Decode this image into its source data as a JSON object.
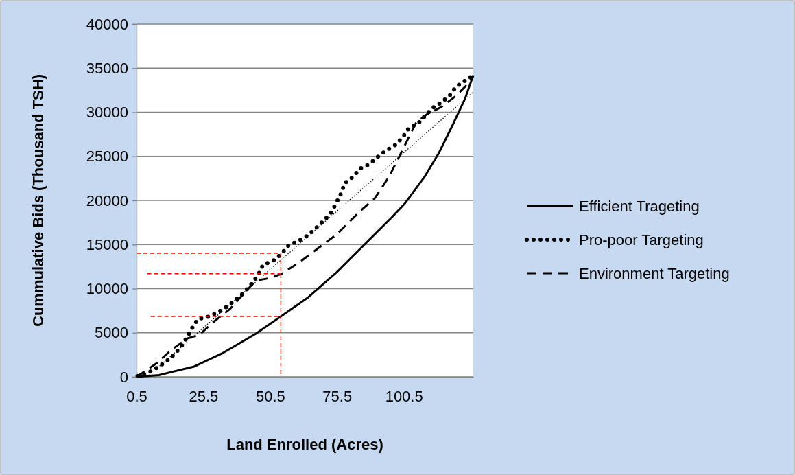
{
  "chart_data": {
    "type": "line",
    "xlabel": "Land Enrolled (Acres)",
    "ylabel": "Cummulative Bids (Thousand TSH)",
    "xlim": [
      0.5,
      126.5
    ],
    "xticks": [
      0.5,
      25.5,
      50.5,
      75.5,
      100.5
    ],
    "ylim": [
      0,
      40000
    ],
    "yticks": [
      0,
      5000,
      10000,
      15000,
      20000,
      25000,
      30000,
      35000,
      40000
    ],
    "grid": "y",
    "legend": "right",
    "marker": "none",
    "series": [
      {
        "name": "Efficient Trageting",
        "color": "#000000",
        "line_style": "solid",
        "x": [
          0.5,
          8.9,
          22.1,
          32.9,
          45.2,
          54.5,
          64.8,
          75.3,
          86.1,
          95.9,
          101,
          108.2,
          113.6,
          118.8,
          123.4,
          126.5
        ],
        "values": [
          0,
          200,
          1170,
          2720,
          4900,
          6850,
          9030,
          11830,
          15100,
          18050,
          19690,
          22650,
          25370,
          28560,
          31520,
          34200
        ]
      },
      {
        "name": "Pro-poor Targeting",
        "color": "#000000",
        "line_style": "dotted",
        "x": [
          0.9,
          4.5,
          8,
          11.6,
          14.5,
          17.3,
          19.5,
          21.5,
          23.5,
          27.5,
          31.2,
          34.6,
          38,
          41,
          43.7,
          46.1,
          47.9,
          51.6,
          54.7,
          57.4,
          60.8,
          64.4,
          67.4,
          70.5,
          73.2,
          75.2,
          77,
          78.4,
          81.7,
          84,
          87.6,
          90.7,
          93.9,
          97.4,
          100.2,
          102.4,
          105.9,
          108.6,
          111.4,
          114.8,
          117.7,
          120.1,
          123.4,
          126.5
        ],
        "values": [
          100,
          390,
          1010,
          1740,
          2520,
          3460,
          4540,
          5630,
          6550,
          6820,
          7350,
          8020,
          8830,
          9630,
          10600,
          11600,
          12720,
          13150,
          13930,
          14900,
          15360,
          16000,
          16800,
          17690,
          18580,
          19690,
          20780,
          21940,
          22720,
          23590,
          24100,
          24930,
          25660,
          26300,
          27210,
          28200,
          28740,
          29630,
          30510,
          31160,
          31910,
          32900,
          33570,
          34200
        ]
      },
      {
        "name": "Environment Targeting",
        "color": "#000000",
        "line_style": "dashed",
        "x": [
          0.5,
          8,
          13.4,
          19.5,
          24,
          29.3,
          35.5,
          40.8,
          45.2,
          50.6,
          55,
          61.2,
          68.3,
          75.4,
          84.3,
          89.6,
          94.9,
          98.5,
          102,
          105.1,
          109.1,
          114.4,
          119.7,
          124.2,
          126.5
        ],
        "values": [
          0,
          1530,
          3010,
          4360,
          4750,
          6230,
          7700,
          9500,
          10930,
          11200,
          11730,
          12930,
          14550,
          16160,
          18830,
          20230,
          22650,
          24800,
          26940,
          28830,
          29760,
          30570,
          31780,
          33120,
          34100
        ]
      },
      {
        "color": "#000000",
        "line_style": "dotted",
        "x": [
          4.5,
          126.5
        ],
        "values": [
          0,
          32300
        ]
      },
      {
        "color": "#ff0000",
        "line_style": "dashed",
        "x": [
          0.5,
          54.5
        ],
        "values": [
          14000,
          14000
        ]
      },
      {
        "color": "#ff0000",
        "line_style": "dashed",
        "x": [
          4.5,
          54.5
        ],
        "values": [
          11700,
          11700
        ]
      },
      {
        "color": "#ff0000",
        "line_style": "dashed",
        "x": [
          5.8,
          54.5
        ],
        "values": [
          6850,
          6850
        ]
      },
      {
        "color": "#ff0000",
        "line_style": "dashed",
        "x": [
          54.5,
          54.5
        ],
        "values": [
          14000,
          0
        ]
      }
    ]
  }
}
